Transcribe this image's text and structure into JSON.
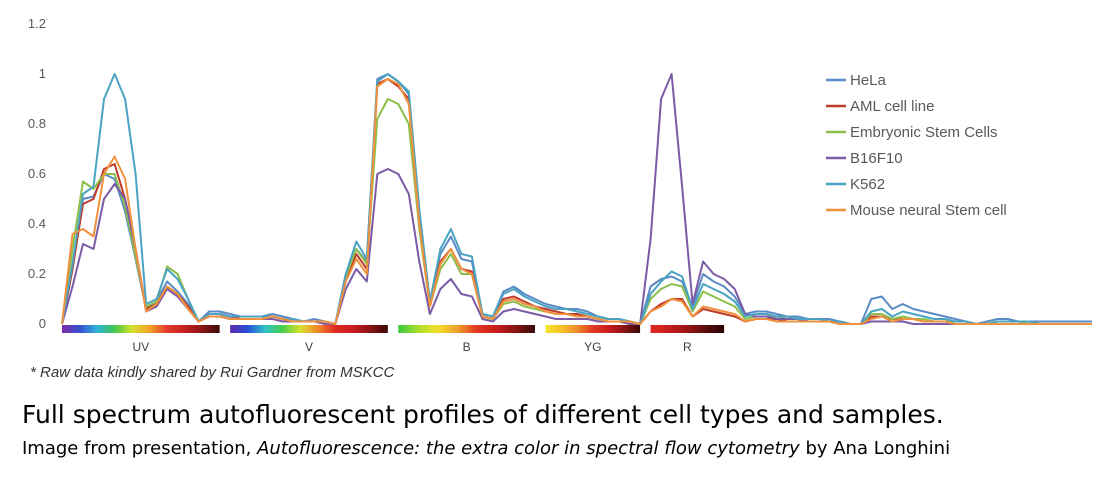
{
  "chart_data": {
    "type": "line",
    "ylim": [
      0,
      1.2
    ],
    "yticks": [
      "0",
      "0.2",
      "0.4",
      "0.6",
      "0.8",
      "1",
      "1.2"
    ],
    "lasers": [
      {
        "name": "UV",
        "channels": 16
      },
      {
        "name": "V",
        "channels": 16
      },
      {
        "name": "B",
        "channels": 14
      },
      {
        "name": "YG",
        "channels": 10
      },
      {
        "name": "R",
        "channels": 8
      }
    ],
    "legend_position": "right",
    "series": [
      {
        "name": "HeLa",
        "color": "#5b8bc4",
        "values": [
          0,
          0.22,
          0.5,
          0.51,
          0.6,
          0.58,
          0.45,
          0.26,
          0.06,
          0.09,
          0.17,
          0.13,
          0.08,
          0.01,
          0.05,
          0.05,
          0.04,
          0.03,
          0.03,
          0.03,
          0.04,
          0.03,
          0.02,
          0.01,
          0.02,
          0.01,
          0,
          0.2,
          0.3,
          0.25,
          0.98,
          1.0,
          0.97,
          0.92,
          0.45,
          0.09,
          0.28,
          0.35,
          0.26,
          0.25,
          0.04,
          0.03,
          0.13,
          0.15,
          0.12,
          0.1,
          0.08,
          0.07,
          0.06,
          0.06,
          0.05,
          0.03,
          0.02,
          0.02,
          0.01,
          0,
          0.15,
          0.18,
          0.19,
          0.17,
          0.07,
          0.2,
          0.17,
          0.15,
          0.11,
          0.04,
          0.05,
          0.05,
          0.04,
          0.03,
          0.03,
          0.02,
          0.02,
          0.02,
          0.01,
          0,
          0,
          0.1,
          0.11,
          0.06,
          0.08,
          0.06,
          0.05,
          0.04,
          0.03,
          0.02,
          0.01,
          0,
          0.01,
          0.02,
          0.02,
          0.01,
          0.01,
          0.01,
          0.01,
          0.01,
          0.01,
          0.01,
          0.01
        ]
      },
      {
        "name": "AML cell line",
        "color": "#c0392b",
        "values": [
          0,
          0.22,
          0.48,
          0.5,
          0.62,
          0.64,
          0.5,
          0.3,
          0.06,
          0.08,
          0.15,
          0.12,
          0.07,
          0.01,
          0.04,
          0.04,
          0.03,
          0.02,
          0.02,
          0.02,
          0.03,
          0.02,
          0.01,
          0.01,
          0.01,
          0.01,
          0,
          0.18,
          0.28,
          0.22,
          0.96,
          0.98,
          0.95,
          0.9,
          0.42,
          0.08,
          0.25,
          0.3,
          0.22,
          0.21,
          0.03,
          0.02,
          0.1,
          0.11,
          0.09,
          0.07,
          0.06,
          0.05,
          0.04,
          0.04,
          0.03,
          0.02,
          0.01,
          0.01,
          0.01,
          0,
          0.05,
          0.08,
          0.1,
          0.1,
          0.03,
          0.06,
          0.05,
          0.04,
          0.03,
          0.01,
          0.02,
          0.02,
          0.02,
          0.01,
          0.01,
          0.01,
          0.01,
          0.01,
          0.01,
          0,
          0,
          0.03,
          0.03,
          0.02,
          0.02,
          0.02,
          0.01,
          0.01,
          0.01,
          0.01,
          0.01,
          0,
          0,
          0,
          0,
          0,
          0,
          0,
          0,
          0,
          0,
          0,
          0
        ]
      },
      {
        "name": "Embryonic Stem Cells",
        "color": "#8cc04b",
        "values": [
          0,
          0.3,
          0.57,
          0.54,
          0.6,
          0.6,
          0.47,
          0.27,
          0.07,
          0.09,
          0.23,
          0.2,
          0.1,
          0.01,
          0.03,
          0.03,
          0.02,
          0.02,
          0.02,
          0.02,
          0.03,
          0.02,
          0.01,
          0.01,
          0.01,
          0.01,
          0,
          0.19,
          0.3,
          0.24,
          0.82,
          0.9,
          0.88,
          0.8,
          0.38,
          0.07,
          0.22,
          0.28,
          0.2,
          0.2,
          0.03,
          0.02,
          0.08,
          0.09,
          0.07,
          0.06,
          0.05,
          0.04,
          0.04,
          0.03,
          0.03,
          0.02,
          0.01,
          0.01,
          0.01,
          0,
          0.1,
          0.14,
          0.16,
          0.15,
          0.05,
          0.13,
          0.11,
          0.09,
          0.07,
          0.02,
          0.03,
          0.03,
          0.03,
          0.02,
          0.02,
          0.01,
          0.01,
          0.01,
          0.01,
          0,
          0,
          0.04,
          0.04,
          0.02,
          0.03,
          0.02,
          0.02,
          0.01,
          0.01,
          0.01,
          0.01,
          0,
          0,
          0.01,
          0.01,
          0.01,
          0,
          0,
          0,
          0,
          0,
          0,
          0
        ]
      },
      {
        "name": "B16F10",
        "color": "#7b5aa6",
        "values": [
          0,
          0.15,
          0.32,
          0.3,
          0.5,
          0.56,
          0.5,
          0.3,
          0.05,
          0.07,
          0.14,
          0.11,
          0.06,
          0.01,
          0.03,
          0.03,
          0.02,
          0.02,
          0.02,
          0.02,
          0.02,
          0.01,
          0.01,
          0.01,
          0.01,
          0,
          0,
          0.14,
          0.22,
          0.17,
          0.6,
          0.62,
          0.6,
          0.52,
          0.25,
          0.04,
          0.14,
          0.18,
          0.12,
          0.11,
          0.02,
          0.01,
          0.05,
          0.06,
          0.05,
          0.04,
          0.03,
          0.02,
          0.02,
          0.02,
          0.02,
          0.01,
          0.01,
          0.01,
          0,
          0,
          0.34,
          0.9,
          1.0,
          0.55,
          0.08,
          0.25,
          0.2,
          0.18,
          0.14,
          0.04,
          0.03,
          0.03,
          0.02,
          0.02,
          0.02,
          0.01,
          0.01,
          0.01,
          0,
          0,
          0,
          0.01,
          0.01,
          0.01,
          0.01,
          0,
          0,
          0,
          0,
          0,
          0,
          0,
          0,
          0,
          0,
          0,
          0,
          0,
          0,
          0,
          0,
          0,
          0
        ]
      },
      {
        "name": "K562",
        "color": "#4ba3c3",
        "values": [
          0,
          0.24,
          0.52,
          0.55,
          0.9,
          1.0,
          0.9,
          0.6,
          0.08,
          0.1,
          0.22,
          0.18,
          0.1,
          0.01,
          0.04,
          0.04,
          0.03,
          0.03,
          0.03,
          0.03,
          0.03,
          0.02,
          0.02,
          0.01,
          0.01,
          0.01,
          0,
          0.2,
          0.33,
          0.26,
          0.97,
          1.0,
          0.97,
          0.93,
          0.46,
          0.09,
          0.3,
          0.38,
          0.28,
          0.27,
          0.04,
          0.03,
          0.12,
          0.14,
          0.11,
          0.09,
          0.07,
          0.06,
          0.06,
          0.05,
          0.04,
          0.03,
          0.02,
          0.02,
          0.01,
          0,
          0.12,
          0.17,
          0.21,
          0.19,
          0.06,
          0.16,
          0.14,
          0.12,
          0.09,
          0.03,
          0.04,
          0.04,
          0.03,
          0.03,
          0.02,
          0.02,
          0.02,
          0.01,
          0.01,
          0,
          0,
          0.05,
          0.06,
          0.03,
          0.05,
          0.04,
          0.03,
          0.02,
          0.02,
          0.01,
          0.01,
          0,
          0,
          0.01,
          0.01,
          0.01,
          0.01,
          0,
          0,
          0,
          0,
          0,
          0
        ]
      },
      {
        "name": "Mouse neural Stem cell",
        "color": "#f0913e",
        "values": [
          0,
          0.36,
          0.38,
          0.35,
          0.6,
          0.67,
          0.58,
          0.3,
          0.05,
          0.08,
          0.15,
          0.12,
          0.06,
          0.01,
          0.03,
          0.03,
          0.02,
          0.02,
          0.02,
          0.02,
          0.03,
          0.02,
          0.01,
          0.01,
          0.01,
          0.01,
          0,
          0.17,
          0.26,
          0.2,
          0.95,
          0.98,
          0.96,
          0.88,
          0.4,
          0.07,
          0.24,
          0.3,
          0.22,
          0.2,
          0.03,
          0.02,
          0.09,
          0.1,
          0.08,
          0.07,
          0.05,
          0.04,
          0.04,
          0.03,
          0.03,
          0.02,
          0.01,
          0.01,
          0.01,
          0,
          0.05,
          0.07,
          0.1,
          0.09,
          0.03,
          0.07,
          0.06,
          0.05,
          0.04,
          0.01,
          0.02,
          0.02,
          0.01,
          0.01,
          0.01,
          0.01,
          0.01,
          0.01,
          0,
          0,
          0,
          0.02,
          0.03,
          0.01,
          0.02,
          0.02,
          0.01,
          0.01,
          0.01,
          0,
          0,
          0,
          0,
          0,
          0,
          0,
          0,
          0,
          0,
          0,
          0,
          0,
          0
        ]
      }
    ]
  },
  "footnote": "* Raw data kindly shared by Rui Gardner from MSKCC",
  "caption": {
    "title": "Full spectrum autofluorescent profiles of different cell types and samples.",
    "prefix": "Image from presentation, ",
    "italic": "Autofluorescence: the extra color in spectral flow cytometry",
    "suffix": " by Ana Longhini"
  }
}
